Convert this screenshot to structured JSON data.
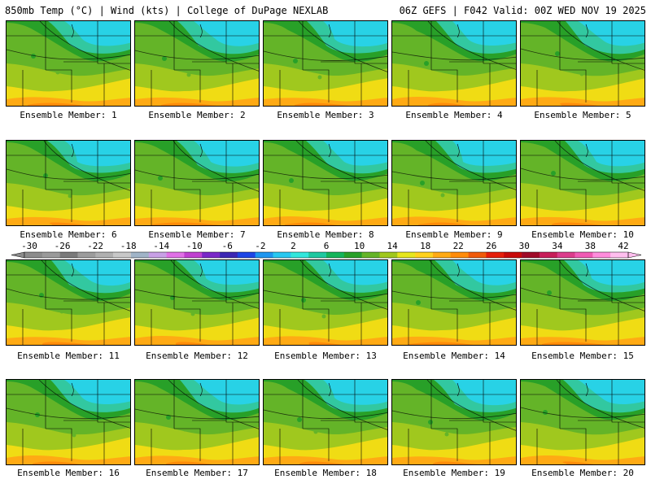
{
  "header": {
    "title": "850mb Temp (°C) | Wind (kts) | College of DuPage NEXLAB",
    "run": "06Z GEFS | F042 Valid: 00Z WED NOV 19 2025"
  },
  "panels": [
    {
      "label": "Ensemble Member: 1"
    },
    {
      "label": "Ensemble Member: 2"
    },
    {
      "label": "Ensemble Member: 3"
    },
    {
      "label": "Ensemble Member: 4"
    },
    {
      "label": "Ensemble Member: 5"
    },
    {
      "label": "Ensemble Member: 6"
    },
    {
      "label": "Ensemble Member: 7"
    },
    {
      "label": "Ensemble Member: 8"
    },
    {
      "label": "Ensemble Member: 9"
    },
    {
      "label": "Ensemble Member: 10"
    },
    {
      "label": "Ensemble Member: 11"
    },
    {
      "label": "Ensemble Member: 12"
    },
    {
      "label": "Ensemble Member: 13"
    },
    {
      "label": "Ensemble Member: 14"
    },
    {
      "label": "Ensemble Member: 15"
    },
    {
      "label": "Ensemble Member: 16"
    },
    {
      "label": "Ensemble Member: 17"
    },
    {
      "label": "Ensemble Member: 18"
    },
    {
      "label": "Ensemble Member: 19"
    },
    {
      "label": "Ensemble Member: 20"
    }
  ],
  "colorbar": {
    "ticks": [
      "-30",
      "-26",
      "-22",
      "-18",
      "-14",
      "-10",
      "-6",
      "-2",
      "2",
      "6",
      "10",
      "14",
      "18",
      "22",
      "26",
      "30",
      "34",
      "38",
      "42"
    ],
    "colors": [
      "#8c8c8c",
      "#9a9a9a",
      "#7a7a7a",
      "#9c9c9c",
      "#b0b0b0",
      "#c8c8c8",
      "#a0b4c8",
      "#c8a0e6",
      "#e070e6",
      "#c040d0",
      "#7a28c8",
      "#3c28b4",
      "#1e46e6",
      "#1e96f0",
      "#28c8f0",
      "#32e6dc",
      "#1ec8a0",
      "#14b45a",
      "#28a028",
      "#64b428",
      "#a0c81e",
      "#e6e61e",
      "#ffd21e",
      "#ffaa14",
      "#ff8c0a",
      "#f05a0a",
      "#e61e0a",
      "#c80a0a",
      "#a00a28",
      "#c81e5a",
      "#dc3c8c",
      "#f05ab4",
      "#ff8cdc",
      "#ffbeee"
    ]
  }
}
